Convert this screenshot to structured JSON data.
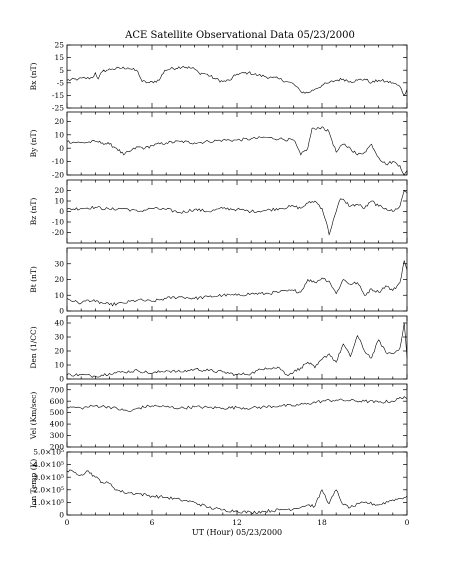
{
  "chart_data": {
    "type": "line",
    "title": "ACE Satellite Observational Data   05/23/2000",
    "xlabel": "UT (Hour)   05/23/2000",
    "x_ticks": [
      "0",
      "6",
      "12",
      "18",
      "0"
    ],
    "xlim": [
      0,
      24
    ],
    "panels": [
      {
        "ylabel": "Bx (nT)",
        "ylim": [
          -25,
          25
        ],
        "y_ticks": [
          "25",
          "15",
          "5",
          "-5",
          "-15",
          "-25"
        ],
        "y_tick_values": [
          25,
          15,
          5,
          -5,
          -15,
          -25
        ],
        "x": [
          0,
          0.8,
          1.8,
          2.0,
          2.2,
          2.5,
          2.8,
          3.2,
          4.3,
          5.0,
          5.3,
          5.8,
          6.5,
          6.9,
          7.3,
          8.2,
          9.0,
          9.3,
          9.8,
          10.5,
          11.0,
          11.5,
          12.0,
          12.8,
          13.5,
          14.5,
          15.0,
          15.5,
          16.0,
          16.5,
          17.0,
          17.5,
          18.0,
          18.5,
          19.0,
          19.5,
          20.0,
          20.5,
          21.0,
          21.5,
          22.0,
          22.5,
          23.0,
          23.5,
          23.8,
          24.0
        ],
        "y": [
          -3,
          -2,
          -1,
          3,
          -2,
          4,
          5,
          6,
          7,
          4,
          -4,
          -5,
          -3,
          5,
          6,
          8,
          6,
          3,
          2,
          -2,
          -4,
          -3,
          2,
          3,
          1,
          -1,
          -2,
          -4,
          -6,
          -12,
          -13,
          -10,
          -7,
          -5,
          -3,
          -2,
          -4,
          -3,
          -2,
          -5,
          -3,
          -4,
          -5,
          -8,
          -15,
          -10
        ]
      },
      {
        "ylabel": "By (nT)",
        "ylim": [
          -20,
          27
        ],
        "y_ticks": [
          "20",
          "10",
          "0",
          "-10",
          "-20"
        ],
        "y_tick_values": [
          20,
          10,
          0,
          -10,
          -20
        ],
        "x": [
          0,
          1.0,
          2.0,
          2.5,
          3.0,
          3.5,
          4.0,
          4.5,
          5.0,
          5.5,
          6.0,
          7.0,
          8.0,
          9.0,
          10.0,
          11.0,
          12.0,
          13.0,
          14.0,
          15.0,
          16.0,
          16.5,
          17.0,
          17.3,
          17.6,
          18.0,
          18.5,
          19.0,
          19.5,
          20.0,
          20.5,
          21.0,
          21.5,
          22.0,
          22.5,
          23.0,
          23.5,
          23.8,
          24.0
        ],
        "y": [
          5,
          4,
          5,
          4,
          3,
          0,
          -5,
          -2,
          1,
          0,
          2,
          4,
          5,
          4,
          5,
          6,
          6,
          7,
          8,
          7,
          6,
          -5,
          0,
          15,
          14,
          16,
          12,
          -3,
          3,
          0,
          -5,
          -3,
          3,
          -7,
          -12,
          -10,
          -13,
          -20,
          -17
        ]
      },
      {
        "ylabel": "Bz (nT)",
        "ylim": [
          -30,
          30
        ],
        "y_ticks": [
          "20",
          "10",
          "0",
          "-10",
          "-20"
        ],
        "y_tick_values": [
          20,
          10,
          0,
          -10,
          -20
        ],
        "x": [
          0,
          1.0,
          2.0,
          3.0,
          4.0,
          5.0,
          6.0,
          7.0,
          8.0,
          9.0,
          10.0,
          11.0,
          12.0,
          13.0,
          14.0,
          15.0,
          16.0,
          16.5,
          17.0,
          17.5,
          18.0,
          18.3,
          18.5,
          18.8,
          19.0,
          19.3,
          19.6,
          20.0,
          20.5,
          21.0,
          21.5,
          22.0,
          22.5,
          23.0,
          23.5,
          23.8,
          24.0
        ],
        "y": [
          2,
          3,
          4,
          2,
          3,
          0,
          3,
          2,
          -1,
          2,
          0,
          3,
          2,
          0,
          1,
          3,
          5,
          3,
          8,
          10,
          3,
          -10,
          -22,
          -8,
          0,
          12,
          10,
          5,
          7,
          3,
          10,
          5,
          3,
          0,
          5,
          20,
          18
        ]
      },
      {
        "ylabel": "Bt (nT)",
        "ylim": [
          0,
          40
        ],
        "y_ticks": [
          "30",
          "20",
          "10",
          "0"
        ],
        "y_tick_values": [
          30,
          20,
          10,
          0
        ],
        "x": [
          0,
          0.5,
          1.0,
          1.5,
          2.0,
          2.5,
          3.0,
          4.0,
          5.0,
          6.0,
          7.0,
          8.0,
          9.0,
          10.0,
          11.0,
          12.0,
          13.0,
          14.0,
          15.0,
          16.0,
          16.5,
          17.0,
          17.5,
          18.0,
          18.5,
          19.0,
          19.5,
          20.0,
          20.5,
          21.0,
          21.5,
          22.0,
          22.5,
          23.0,
          23.5,
          23.8,
          24.0
        ],
        "y": [
          8,
          6,
          5,
          7,
          6,
          5,
          4,
          5,
          7,
          6,
          8,
          9,
          8,
          9,
          10,
          10,
          11,
          11,
          12,
          13,
          12,
          20,
          18,
          21,
          19,
          11,
          20,
          17,
          18,
          10,
          14,
          12,
          16,
          13,
          18,
          32,
          26
        ]
      },
      {
        "ylabel": "Den (1/CC)",
        "ylim": [
          0,
          45
        ],
        "y_ticks": [
          "40",
          "30",
          "20",
          "10",
          "0"
        ],
        "y_tick_values": [
          40,
          30,
          20,
          10,
          0
        ],
        "x": [
          0,
          1.0,
          2.0,
          3.0,
          4.0,
          5.0,
          6.0,
          7.0,
          8.0,
          9.0,
          10.0,
          11.0,
          12.0,
          13.0,
          14.0,
          15.0,
          15.5,
          16.0,
          16.5,
          17.0,
          17.5,
          18.0,
          18.5,
          19.0,
          19.5,
          20.0,
          20.5,
          21.0,
          21.5,
          22.0,
          22.5,
          23.0,
          23.5,
          23.8,
          24.0
        ],
        "y": [
          3,
          3,
          2,
          4,
          5,
          6,
          4,
          6,
          5,
          7,
          6,
          5,
          3,
          4,
          8,
          8,
          3,
          5,
          8,
          12,
          8,
          14,
          18,
          12,
          25,
          16,
          31,
          20,
          15,
          28,
          19,
          18,
          22,
          40,
          15
        ]
      },
      {
        "ylabel": "Vel (Km/sec)",
        "ylim": [
          200,
          750
        ],
        "y_ticks": [
          "700",
          "600",
          "500",
          "400",
          "300",
          "200"
        ],
        "y_tick_values": [
          700,
          600,
          500,
          400,
          300,
          200
        ],
        "x": [
          0,
          1.0,
          2.0,
          3.0,
          4.0,
          4.5,
          5.0,
          6.0,
          7.0,
          8.0,
          9.0,
          10.0,
          11.0,
          12.0,
          13.0,
          14.0,
          15.0,
          16.0,
          17.0,
          18.0,
          19.0,
          20.0,
          21.0,
          22.0,
          23.0,
          23.8,
          24.0
        ],
        "y": [
          550,
          540,
          560,
          550,
          520,
          510,
          540,
          560,
          550,
          540,
          550,
          545,
          540,
          545,
          540,
          550,
          560,
          560,
          580,
          600,
          610,
          605,
          600,
          590,
          600,
          640,
          620
        ]
      },
      {
        "ylabel": "Ion Temp (K)",
        "ylim": [
          0,
          500000
        ],
        "y_ticks": [
          "5.0×10⁵",
          "4.0×10⁵",
          "3.0×10⁵",
          "2.0×10⁵",
          "1.0×10⁵",
          "0"
        ],
        "y_tick_values": [
          500000,
          400000,
          300000,
          200000,
          100000,
          0
        ],
        "x": [
          0,
          0.5,
          1.0,
          1.5,
          2.0,
          2.5,
          3.0,
          3.5,
          4.0,
          5.0,
          6.0,
          7.0,
          8.0,
          9.0,
          10.0,
          11.0,
          12.0,
          13.0,
          14.0,
          15.0,
          16.0,
          17.0,
          17.5,
          18.0,
          18.5,
          19.0,
          19.5,
          20.0,
          21.0,
          22.0,
          23.0,
          23.5,
          24.0
        ],
        "y": [
          350000,
          340000,
          320000,
          350000,
          300000,
          260000,
          250000,
          200000,
          180000,
          170000,
          150000,
          140000,
          120000,
          100000,
          60000,
          40000,
          30000,
          20000,
          30000,
          40000,
          50000,
          80000,
          70000,
          200000,
          90000,
          200000,
          80000,
          60000,
          100000,
          80000,
          120000,
          130000,
          150000
        ]
      }
    ]
  }
}
